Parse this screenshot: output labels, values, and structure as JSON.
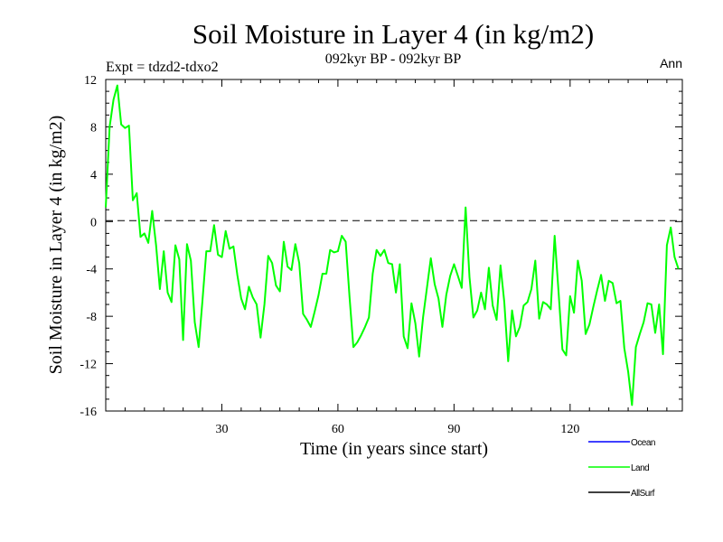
{
  "chart_data": {
    "type": "line",
    "title": "Soil Moisture in Layer 4 (in kg/m2)",
    "subtitle": "092kyr BP - 092kyr BP",
    "experiment_label": "Expt = tdzd2-tdxo2",
    "season_label": "Ann",
    "xlabel": "Time (in years since start)",
    "ylabel": "Soil Moisture in Layer 4 (in kg/m2)",
    "xlim": [
      0,
      149
    ],
    "ylim": [
      -16,
      12
    ],
    "x_ticks": [
      30,
      60,
      90,
      120
    ],
    "y_ticks": [
      12,
      8,
      4,
      0,
      -4,
      -8,
      -12,
      -16
    ],
    "zero_line": "dashed",
    "legend": [
      {
        "name": "Ocean",
        "color": "#0000ff"
      },
      {
        "name": "Land",
        "color": "#00ff00"
      },
      {
        "name": "AllSurf",
        "color": "#000000"
      }
    ],
    "series": [
      {
        "name": "Land",
        "color": "#00ff00",
        "values": [
          1.2,
          8.0,
          10.3,
          11.5,
          8.2,
          7.9,
          8.1,
          1.8,
          2.4,
          -1.3,
          -1.0,
          -1.8,
          0.9,
          -2.0,
          -5.7,
          -2.5,
          -6.0,
          -6.8,
          -2.0,
          -3.2,
          -10.0,
          -1.9,
          -3.3,
          -8.5,
          -10.6,
          -6.7,
          -2.5,
          -2.5,
          -0.3,
          -2.8,
          -3.0,
          -0.8,
          -2.3,
          -2.1,
          -4.5,
          -6.5,
          -7.4,
          -5.5,
          -6.4,
          -7.0,
          -9.8,
          -7.0,
          -2.9,
          -3.5,
          -5.4,
          -5.9,
          -1.7,
          -3.8,
          -4.1,
          -1.9,
          -3.5,
          -7.8,
          -8.3,
          -8.9,
          -7.6,
          -6.2,
          -4.4,
          -4.4,
          -2.4,
          -2.6,
          -2.5,
          -1.2,
          -1.7,
          -6.4,
          -10.6,
          -10.2,
          -9.6,
          -8.9,
          -8.1,
          -4.4,
          -2.4,
          -2.9,
          -2.4,
          -3.5,
          -3.6,
          -6.0,
          -3.6,
          -9.7,
          -10.7,
          -6.9,
          -8.6,
          -11.4,
          -8.1,
          -5.6,
          -3.1,
          -5.3,
          -6.5,
          -8.9,
          -6.2,
          -4.6,
          -3.6,
          -4.6,
          -5.6,
          1.2,
          -4.7,
          -8.1,
          -7.5,
          -6.0,
          -7.4,
          -3.9,
          -7.1,
          -8.3,
          -3.7,
          -6.8,
          -11.8,
          -7.5,
          -9.7,
          -8.9,
          -7.1,
          -6.8,
          -5.7,
          -3.3,
          -8.2,
          -6.8,
          -7.0,
          -7.4,
          -1.2,
          -5.9,
          -10.8,
          -11.3,
          -6.3,
          -7.7,
          -3.3,
          -5.0,
          -9.5,
          -8.7,
          -7.2,
          -5.8,
          -4.5,
          -6.7,
          -5.0,
          -5.2,
          -6.9,
          -6.7,
          -10.7,
          -12.7,
          -15.5,
          -10.6,
          -9.5,
          -8.5,
          -6.9,
          -7.0,
          -9.4,
          -7.0,
          -11.2,
          -2.0,
          -0.5,
          -3.0,
          -4.0
        ]
      }
    ]
  }
}
